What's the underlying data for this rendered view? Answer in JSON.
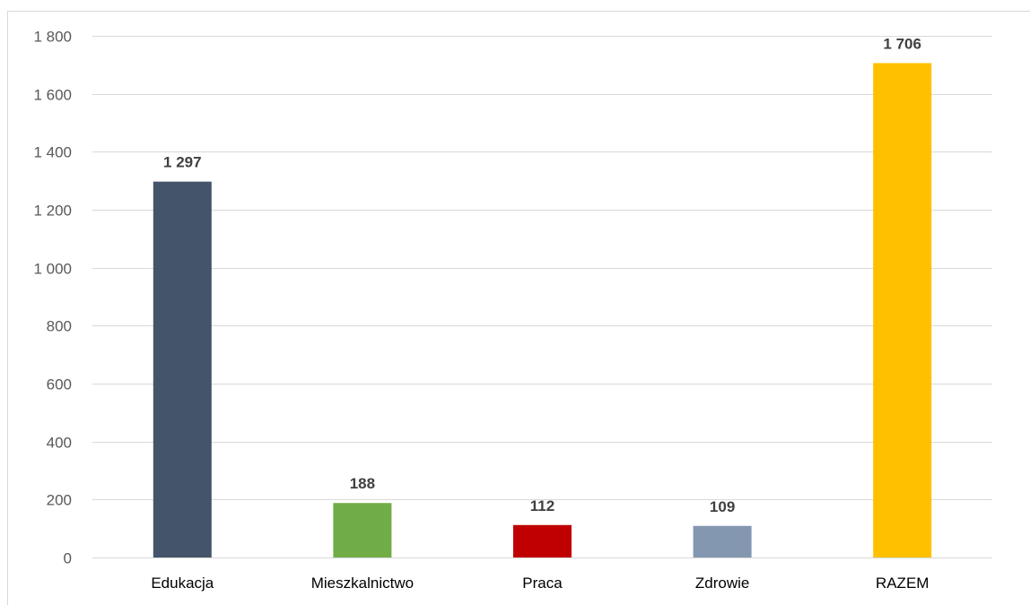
{
  "caption": "",
  "chart_data": {
    "type": "bar",
    "title": "",
    "xlabel": "",
    "ylabel": "",
    "categories": [
      "Edukacja",
      "Mieszkalnictwo",
      "Praca",
      "Zdrowie",
      "RAZEM"
    ],
    "values": [
      1297,
      188,
      112,
      109,
      1706
    ],
    "value_labels": [
      "1 297",
      "188",
      "112",
      "109",
      "1 706"
    ],
    "colors": [
      "#44546a",
      "#70ad47",
      "#c00000",
      "#8497b0",
      "#ffc000"
    ],
    "ylim": [
      0,
      1800
    ],
    "yticks": [
      0,
      200,
      400,
      600,
      800,
      1000,
      1200,
      1400,
      1600,
      1800
    ],
    "ytick_labels": [
      "0",
      "200",
      "400",
      "600",
      "800",
      "1 000",
      "1 200",
      "1 400",
      "1 600",
      "1 800"
    ],
    "grid": true,
    "legend": "none",
    "gridline_color": "#d9d9d9"
  }
}
